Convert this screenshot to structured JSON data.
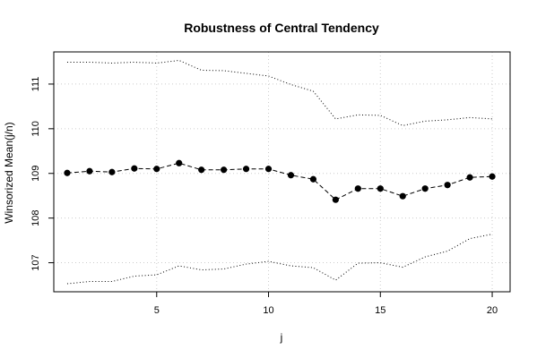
{
  "chart_data": {
    "type": "line",
    "title": "Robustness of Central Tendency",
    "xlabel": "j",
    "ylabel": "Winsorized Mean(j/n)",
    "xlim": [
      0.4,
      20.8
    ],
    "ylim": [
      106.35,
      11.72
    ],
    "x_ticks": [
      5,
      10,
      15,
      20
    ],
    "y_ticks": [
      107,
      108,
      109,
      110,
      111
    ],
    "grid": true,
    "x": [
      1,
      2,
      3,
      4,
      5,
      6,
      7,
      8,
      9,
      10,
      11,
      12,
      13,
      14,
      15,
      16,
      17,
      18,
      19,
      20
    ],
    "series": [
      {
        "role": "winsorized-mean",
        "style": "points-dashed",
        "values": [
          109.01,
          109.05,
          109.03,
          109.11,
          109.1,
          109.23,
          109.08,
          109.08,
          109.1,
          109.1,
          108.96,
          108.87,
          108.41,
          108.66,
          108.66,
          108.49,
          108.66,
          108.74,
          108.91,
          108.93
        ]
      },
      {
        "role": "upper-bound",
        "style": "dotted",
        "values": [
          111.49,
          111.49,
          111.47,
          111.49,
          111.47,
          111.53,
          111.31,
          111.3,
          111.24,
          111.18,
          110.99,
          110.84,
          110.22,
          110.31,
          110.3,
          110.07,
          110.17,
          110.2,
          110.25,
          110.22
        ]
      },
      {
        "role": "lower-bound",
        "style": "dotted",
        "values": [
          106.53,
          106.58,
          106.58,
          106.7,
          106.73,
          106.93,
          106.84,
          106.86,
          106.97,
          107.03,
          106.93,
          106.89,
          106.61,
          106.99,
          107.0,
          106.9,
          107.13,
          107.26,
          107.54,
          107.64
        ]
      }
    ]
  }
}
